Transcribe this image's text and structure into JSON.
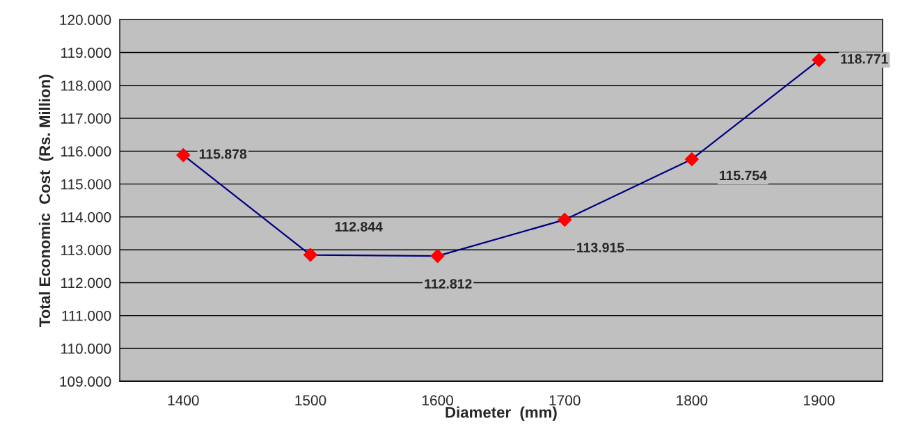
{
  "chart_data": {
    "type": "line",
    "xlabel": "Diameter  (mm)",
    "ylabel": "Total Economic  Cost  (Rs. Million)",
    "categories": [
      "1400",
      "1500",
      "1600",
      "1700",
      "1800",
      "1900"
    ],
    "series": [
      {
        "color": "#000080",
        "colors": [
          "#ff0000",
          "#ff0000",
          "#ff0000",
          "#ff0000",
          "#ff0000",
          "#ff0000"
        ],
        "values": [
          115.878,
          112.844,
          112.812,
          113.915,
          115.754,
          118.771
        ]
      }
    ],
    "marker": "diamond",
    "line_style": "solid",
    "data_labels": true,
    "grid": "y",
    "legend": false,
    "ylim": [
      109,
      120
    ],
    "yticks": [
      {
        "value": 109,
        "label": "109.000"
      },
      {
        "value": 110,
        "label": "110.000"
      },
      {
        "value": 111,
        "label": "111.000"
      },
      {
        "value": 112,
        "label": "112.000"
      },
      {
        "value": 113,
        "label": "113.000"
      },
      {
        "value": 114,
        "label": "114.000"
      },
      {
        "value": 115,
        "label": "115.000"
      },
      {
        "value": 116,
        "label": "116.000"
      },
      {
        "value": 117,
        "label": "117.000"
      },
      {
        "value": 118,
        "label": "118.000"
      },
      {
        "value": 119,
        "label": "119.000"
      },
      {
        "value": 120,
        "label": "120.000"
      }
    ]
  }
}
